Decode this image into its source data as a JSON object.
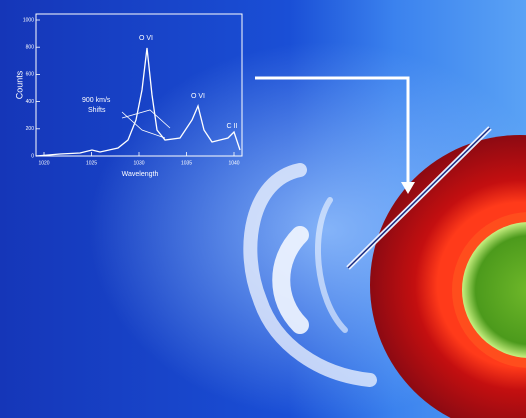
{
  "inset": {
    "y_label": "Counts",
    "x_label": "Wavelength",
    "x_ticks": [
      "1020",
      "1025",
      "1030",
      "1035",
      "1040"
    ],
    "y_ticks": [
      "0",
      "200",
      "400",
      "600",
      "800",
      "1000"
    ],
    "peak_labels": [
      "O VI",
      "O VI",
      "C II"
    ],
    "annotation": [
      "900 km/s",
      "Shifts"
    ]
  }
}
